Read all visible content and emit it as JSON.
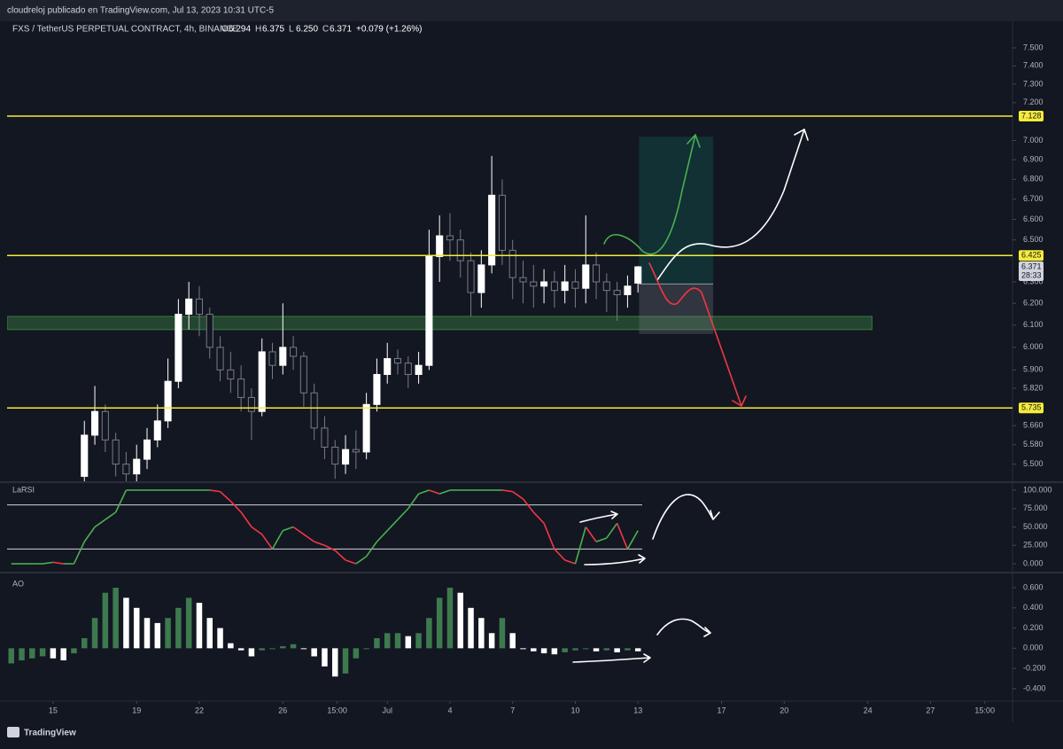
{
  "header": {
    "attribution": "cloudreloj publicado en TradingView.com, Jul 13, 2023 10:31 UTC-5",
    "brand": "TradingView"
  },
  "chart_data": [
    {
      "type": "candlestick",
      "title": "FXS / TetherUS PERPETUAL CONTRACT, 4h, BINANCE",
      "ohlc": [
        {
          "key": "O",
          "text": "6.294"
        },
        {
          "key": "H",
          "text": "6.375"
        },
        {
          "key": "L",
          "text": "6.250"
        },
        {
          "key": "C",
          "text": "6.371"
        }
      ],
      "change": "+0.079 (+1.26%)",
      "log": true,
      "ylim": [
        5.43,
        7.63
      ],
      "yticks": [
        {
          "value": 5.5,
          "label": "5.500"
        },
        {
          "value": 5.58,
          "label": "5.580"
        },
        {
          "value": 5.66,
          "label": "5.660"
        },
        {
          "value": 5.82,
          "label": "5.820"
        },
        {
          "value": 5.9,
          "label": "5.900"
        },
        {
          "value": 6.0,
          "label": "6.000"
        },
        {
          "value": 6.1,
          "label": "6.100"
        },
        {
          "value": 6.2,
          "label": "6.200"
        },
        {
          "value": 6.3,
          "label": "6.300"
        },
        {
          "value": 6.5,
          "label": "6.500"
        },
        {
          "value": 6.6,
          "label": "6.600"
        },
        {
          "value": 6.7,
          "label": "6.700"
        },
        {
          "value": 6.8,
          "label": "6.800"
        },
        {
          "value": 6.9,
          "label": "6.900"
        },
        {
          "value": 7.0,
          "label": "7.000"
        },
        {
          "value": 7.2,
          "label": "7.200"
        },
        {
          "value": 7.3,
          "label": "7.300"
        },
        {
          "value": 7.4,
          "label": "7.400"
        },
        {
          "value": 7.5,
          "label": "7.500"
        }
      ],
      "xlim": [
        12.8,
        60.8
      ],
      "xticks": [
        15,
        19,
        22,
        26,
        {
          "value": 28.6,
          "label": "15:00"
        },
        {
          "value": 31,
          "label": "Jul"
        },
        {
          "value": 34,
          "label": "4"
        },
        {
          "value": 37,
          "label": "7"
        },
        {
          "value": 40,
          "label": "10"
        },
        {
          "value": 43,
          "label": "13"
        },
        {
          "value": 47,
          "label": "17"
        },
        {
          "value": 50,
          "label": "20"
        },
        {
          "value": 54,
          "label": "24"
        },
        {
          "value": 57,
          "label": "27"
        },
        {
          "value": 59.6,
          "label": "15:00"
        }
      ],
      "x": [
        16.5,
        17,
        17.5,
        18,
        18.5,
        19,
        19.5,
        20,
        20.5,
        21,
        21.5,
        22,
        22.5,
        23,
        23.5,
        24,
        24.5,
        25,
        25.5,
        26,
        26.5,
        27,
        27.5,
        28,
        28.5,
        29,
        29.5,
        30,
        30.5,
        31,
        31.5,
        32,
        32.5,
        33,
        33.5,
        34,
        34.5,
        35,
        35.5,
        36,
        36.5,
        37,
        37.5,
        38,
        38.5,
        39,
        39.5,
        40,
        40.5,
        41,
        41.5,
        42,
        42.5,
        43
      ],
      "open": [
        5.45,
        5.62,
        5.72,
        5.6,
        5.5,
        5.46,
        5.52,
        5.6,
        5.68,
        5.85,
        6.15,
        6.22,
        6.15,
        6.0,
        5.9,
        5.86,
        5.78,
        5.72,
        5.98,
        5.92,
        6.0,
        5.96,
        5.8,
        5.65,
        5.57,
        5.5,
        5.56,
        5.55,
        5.75,
        5.88,
        5.95,
        5.93,
        5.88,
        5.92,
        6.42,
        6.52,
        6.5,
        6.4,
        6.25,
        6.38,
        6.72,
        6.45,
        6.32,
        6.3,
        6.28,
        6.3,
        6.26,
        6.3,
        6.27,
        6.38,
        6.3,
        6.26,
        6.24,
        6.294
      ],
      "high": [
        5.68,
        5.83,
        5.75,
        5.63,
        5.55,
        5.58,
        5.65,
        5.75,
        5.95,
        6.22,
        6.3,
        6.28,
        6.18,
        6.05,
        5.98,
        5.92,
        5.82,
        6.04,
        6.02,
        6.2,
        6.05,
        5.98,
        5.84,
        5.7,
        5.6,
        5.62,
        5.64,
        5.8,
        5.95,
        6.02,
        5.99,
        5.96,
        5.98,
        6.55,
        6.62,
        6.63,
        6.55,
        6.44,
        6.45,
        6.92,
        6.8,
        6.5,
        6.4,
        6.38,
        6.36,
        6.35,
        6.38,
        6.36,
        6.62,
        6.44,
        6.34,
        6.3,
        6.33,
        6.375
      ],
      "low": [
        5.4,
        5.58,
        5.55,
        5.45,
        5.42,
        5.43,
        5.48,
        5.57,
        5.65,
        5.82,
        6.08,
        6.05,
        5.95,
        5.85,
        5.8,
        5.72,
        5.6,
        5.7,
        5.86,
        5.88,
        5.9,
        5.74,
        5.6,
        5.52,
        5.44,
        5.46,
        5.48,
        5.52,
        5.72,
        5.84,
        5.88,
        5.82,
        5.84,
        5.9,
        6.3,
        6.4,
        6.32,
        6.14,
        6.18,
        6.34,
        6.38,
        6.22,
        6.2,
        6.18,
        6.2,
        6.18,
        6.2,
        6.18,
        6.2,
        6.22,
        6.16,
        6.12,
        6.18,
        6.25
      ],
      "close": [
        5.62,
        5.72,
        5.6,
        5.5,
        5.46,
        5.52,
        5.6,
        5.68,
        5.85,
        6.15,
        6.22,
        6.15,
        6.0,
        5.9,
        5.86,
        5.78,
        5.72,
        5.98,
        5.92,
        6.0,
        5.96,
        5.8,
        5.65,
        5.57,
        5.5,
        5.56,
        5.55,
        5.75,
        5.88,
        5.95,
        5.93,
        5.88,
        5.92,
        6.42,
        6.52,
        6.5,
        6.4,
        6.25,
        6.38,
        6.72,
        6.45,
        6.32,
        6.3,
        6.28,
        6.3,
        6.26,
        6.3,
        6.27,
        6.38,
        6.3,
        6.26,
        6.24,
        6.28,
        6.371
      ],
      "up_color": "#ffffff",
      "down_color": "#787b86",
      "levels": [
        7.128,
        6.425,
        5.735
      ],
      "level_color": "#f5eb3b",
      "last_price": 6.371,
      "countdown": "28:33",
      "zone": {
        "low": 6.08,
        "high": 6.14,
        "end": 54.2,
        "color": "#4caf50"
      },
      "position": {
        "start": 43.05,
        "end": 46.6,
        "entry": 6.29,
        "target": 7.02,
        "stop": 6.06
      }
    },
    {
      "type": "line",
      "title": "LaRSI",
      "x": [
        13,
        13.5,
        14,
        14.5,
        15,
        15.5,
        16,
        16.5,
        17,
        17.5,
        18,
        18.5,
        19,
        19.5,
        20,
        20.5,
        21,
        21.5,
        22,
        22.5,
        23,
        23.5,
        24,
        24.5,
        25,
        25.5,
        26,
        26.5,
        27,
        27.5,
        28,
        28.5,
        29,
        29.5,
        30,
        30.5,
        31,
        31.5,
        32,
        32.5,
        33,
        33.5,
        34,
        34.5,
        35,
        35.5,
        36,
        36.5,
        37,
        37.5,
        38,
        38.5,
        39,
        39.5,
        40,
        40.5,
        41,
        41.5,
        42,
        42.5,
        43
      ],
      "values": [
        0,
        0,
        0,
        0,
        2,
        0,
        0,
        30,
        50,
        60,
        70,
        100,
        100,
        100,
        100,
        100,
        100,
        100,
        100,
        100,
        98,
        85,
        70,
        50,
        40,
        20,
        45,
        50,
        40,
        30,
        25,
        18,
        5,
        0,
        10,
        30,
        45,
        60,
        75,
        95,
        100,
        95,
        100,
        100,
        100,
        100,
        100,
        100,
        98,
        88,
        70,
        55,
        20,
        5,
        0,
        50,
        30,
        35,
        55,
        20,
        45
      ],
      "up_color": "#4caf50",
      "down_color": "#f23645",
      "levels": [
        80,
        20
      ],
      "ylim": [
        -10.8,
        109.6
      ],
      "yticks": [
        {
          "value": 0,
          "label": "0.000"
        },
        {
          "value": 25,
          "label": "25.000"
        },
        {
          "value": 50,
          "label": "50.000"
        },
        {
          "value": 75,
          "label": "75.000"
        },
        {
          "value": 100,
          "label": "100.000"
        }
      ]
    },
    {
      "type": "bar",
      "title": "AO",
      "x": [
        13,
        13.5,
        14,
        14.5,
        15,
        15.5,
        16,
        16.5,
        17,
        17.5,
        18,
        18.5,
        19,
        19.5,
        20,
        20.5,
        21,
        21.5,
        22,
        22.5,
        23,
        23.5,
        24,
        24.5,
        25,
        25.5,
        26,
        26.5,
        27,
        27.5,
        28,
        28.5,
        29,
        29.5,
        30,
        30.5,
        31,
        31.5,
        32,
        32.5,
        33,
        33.5,
        34,
        34.5,
        35,
        35.5,
        36,
        36.5,
        37,
        37.5,
        38,
        38.5,
        39,
        39.5,
        40,
        40.5,
        41,
        41.5,
        42,
        42.5,
        43
      ],
      "values": [
        -0.15,
        -0.12,
        -0.1,
        -0.08,
        -0.1,
        -0.12,
        -0.05,
        0.1,
        0.3,
        0.55,
        0.6,
        0.5,
        0.4,
        0.3,
        0.25,
        0.3,
        0.4,
        0.5,
        0.45,
        0.3,
        0.2,
        0.05,
        -0.02,
        -0.08,
        -0.02,
        0,
        0.02,
        0.04,
        0,
        -0.08,
        -0.18,
        -0.28,
        -0.25,
        -0.1,
        0,
        0.1,
        0.15,
        0.15,
        0.12,
        0.15,
        0.3,
        0.5,
        0.6,
        0.55,
        0.4,
        0.3,
        0.15,
        0.3,
        0.15,
        0,
        -0.03,
        -0.05,
        -0.06,
        -0.04,
        -0.02,
        0,
        -0.03,
        -0.02,
        -0.04,
        -0.02,
        -0.03
      ],
      "up_color": "#3d7a4f",
      "down_color": "#ffffff",
      "ylim": [
        -0.515,
        0.732
      ],
      "yticks": [
        {
          "value": -0.4,
          "label": "-0.400"
        },
        {
          "value": -0.2,
          "label": "-0.200"
        },
        {
          "value": 0,
          "label": "0.000"
        },
        {
          "value": 0.2,
          "label": "0.200"
        },
        {
          "value": 0.4,
          "label": "0.400"
        },
        {
          "value": 0.6,
          "label": "0.600"
        }
      ]
    }
  ]
}
